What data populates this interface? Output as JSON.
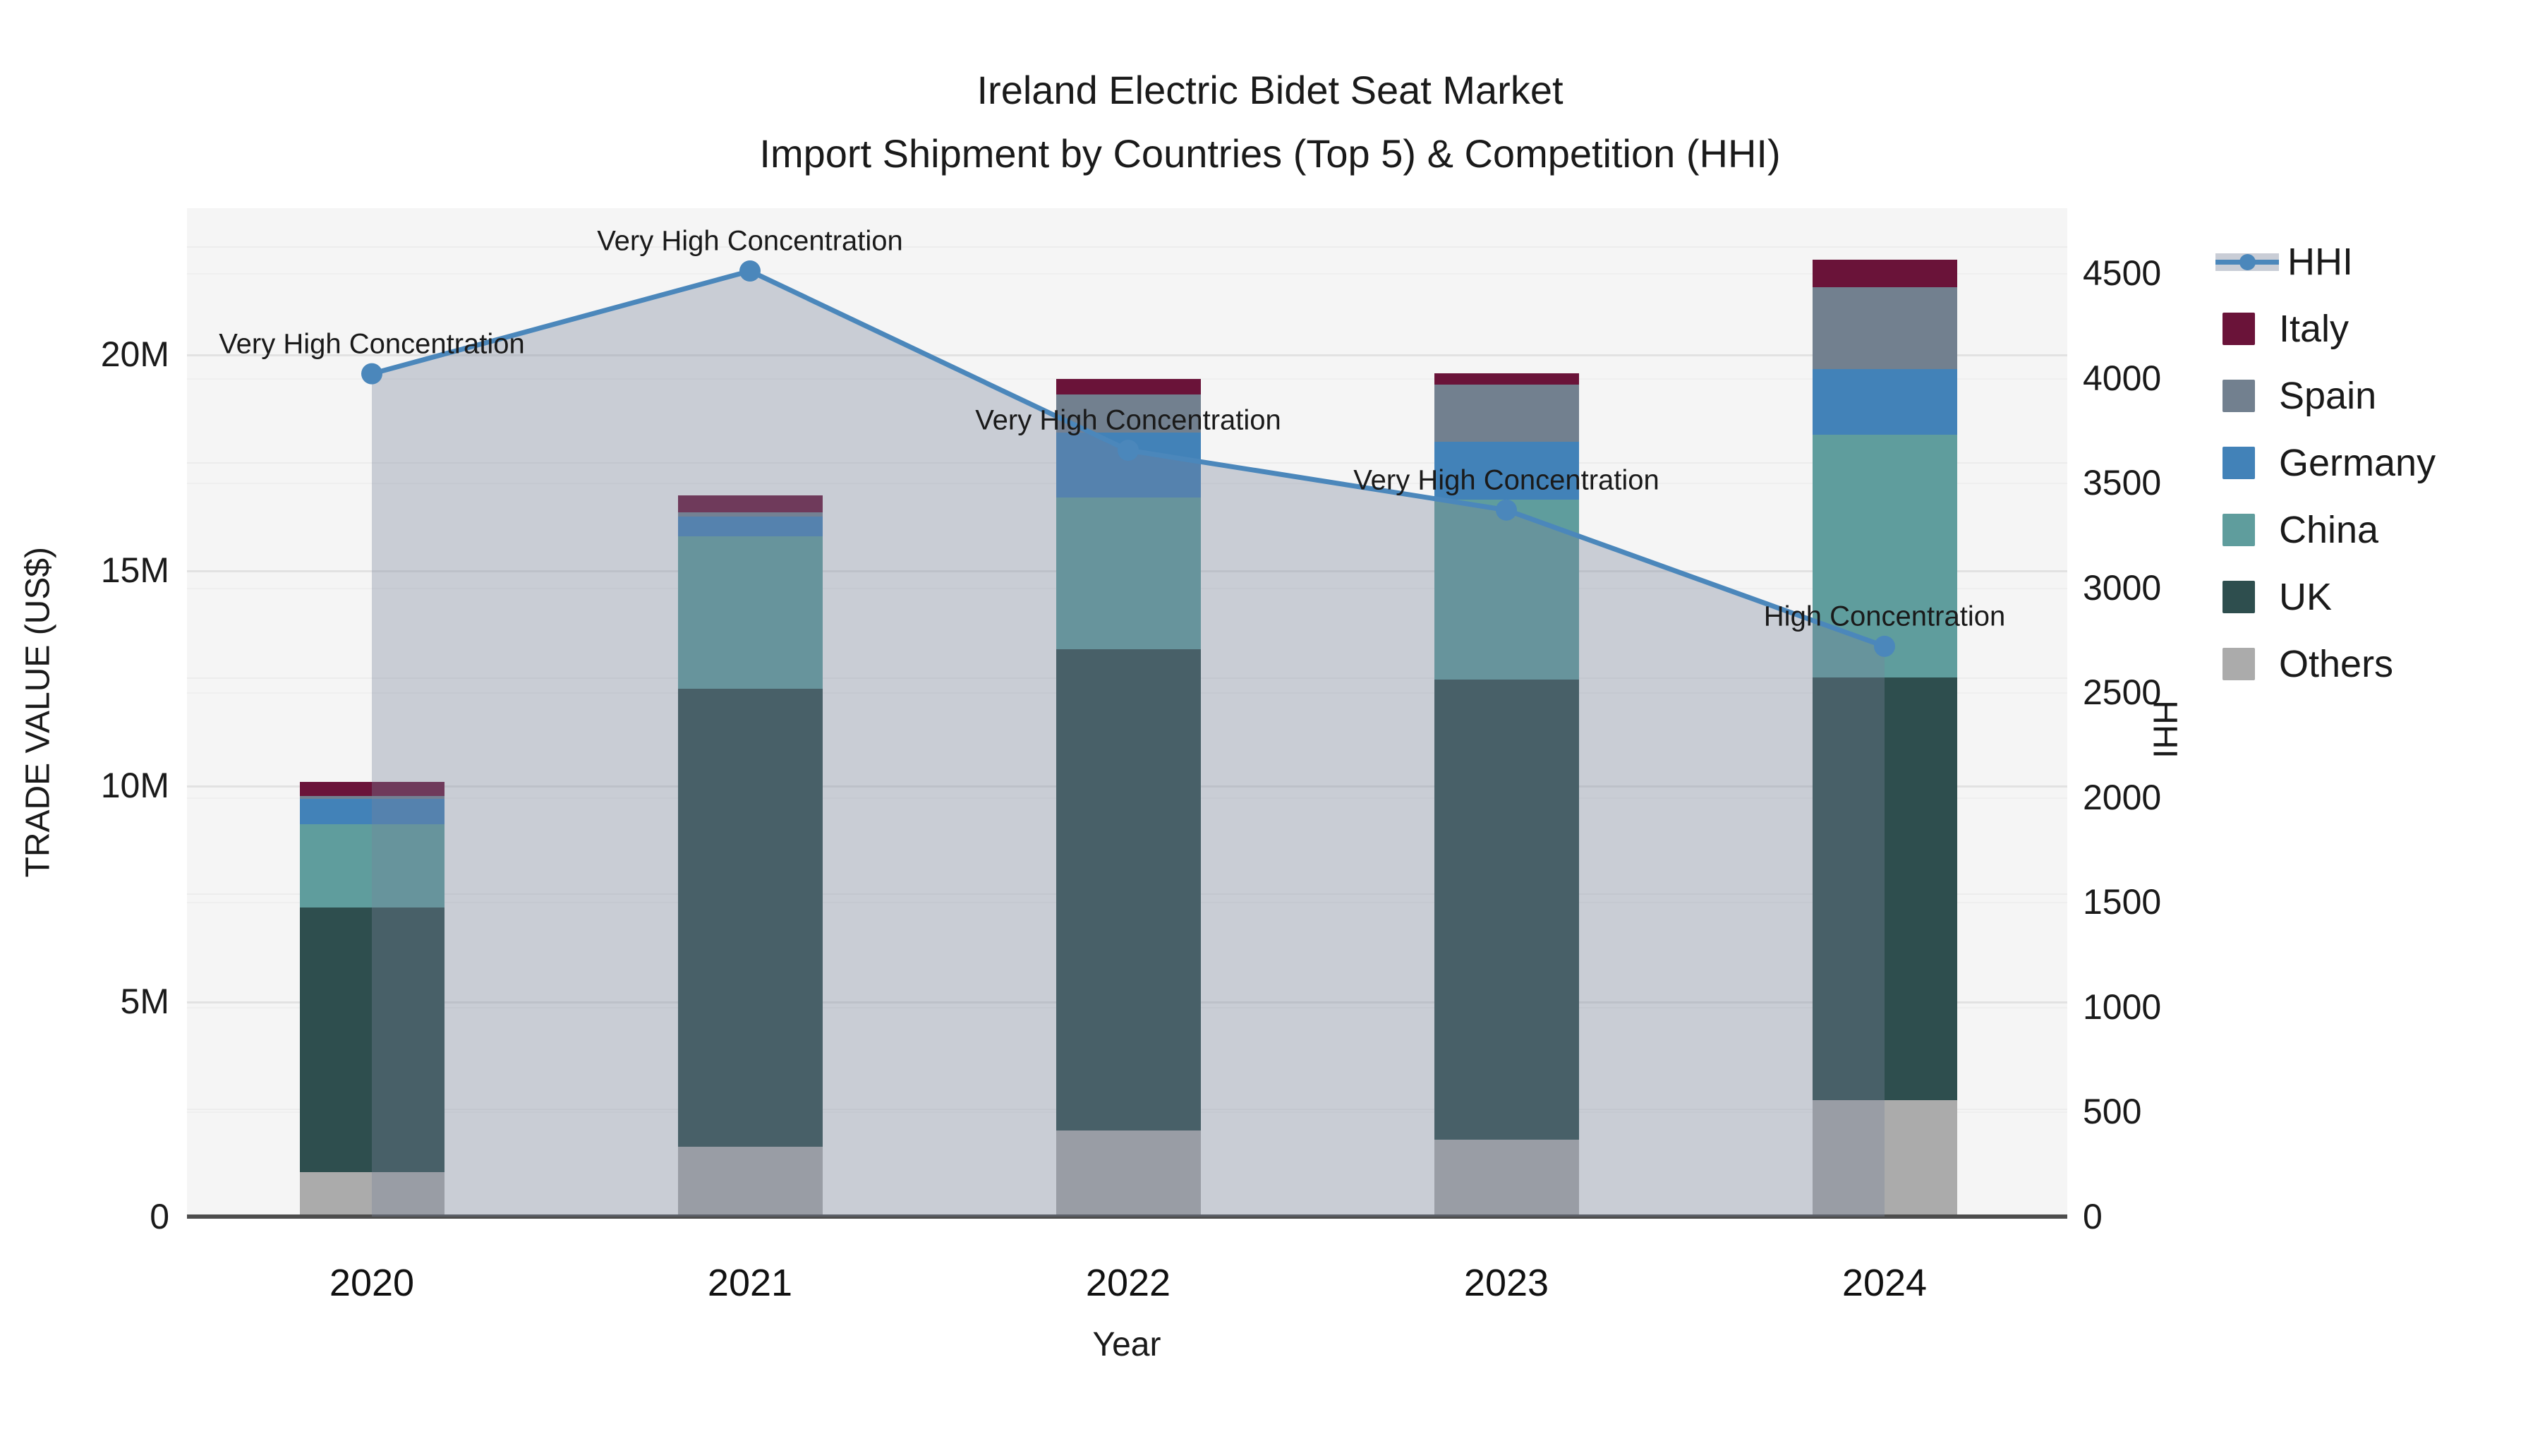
{
  "title": {
    "line1": "Ireland Electric Bidet Seat Market",
    "line2": "Import Shipment by Countries (Top 5) & Competition (HHI)"
  },
  "axes": {
    "y_left": {
      "title": "TRADE VALUE (US$)",
      "tick_labels": [
        "0",
        "5M",
        "10M",
        "15M",
        "20M"
      ],
      "tick_values": [
        0,
        5,
        10,
        15,
        20
      ],
      "max_value": 23.4
    },
    "y_right": {
      "title": "HHI",
      "tick_labels": [
        "0",
        "500",
        "1000",
        "1500",
        "2000",
        "2500",
        "3000",
        "3500",
        "4000",
        "4500"
      ],
      "tick_values": [
        0,
        500,
        1000,
        1500,
        2000,
        2500,
        3000,
        3500,
        4000,
        4500
      ],
      "max_value": 4810
    },
    "x": {
      "title": "Year",
      "tick_labels": [
        "2020",
        "2021",
        "2022",
        "2023",
        "2024"
      ]
    }
  },
  "chart_data": {
    "type": "bar",
    "subtype": "stacked-bars-with-line-overlay",
    "categories": [
      2020,
      2021,
      2022,
      2023,
      2024
    ],
    "value_unit": "Million US$",
    "series": [
      {
        "name": "Others",
        "color": "#ABABAB",
        "values": [
          1.03,
          1.62,
          2.0,
          1.78,
          2.7
        ]
      },
      {
        "name": "UK",
        "color": "#2E4E4E",
        "values": [
          6.14,
          10.62,
          11.16,
          10.67,
          9.8
        ]
      },
      {
        "name": "China",
        "color": "#5F9D9D",
        "values": [
          1.93,
          3.54,
          3.52,
          4.18,
          5.63
        ]
      },
      {
        "name": "Germany",
        "color": "#4282B8",
        "values": [
          0.59,
          0.46,
          1.51,
          1.34,
          1.52
        ]
      },
      {
        "name": "Spain",
        "color": "#72808F",
        "values": [
          0.07,
          0.1,
          0.88,
          1.33,
          1.9
        ]
      },
      {
        "name": "Italy",
        "color": "#6A1339",
        "values": [
          0.33,
          0.39,
          0.36,
          0.26,
          0.65
        ]
      }
    ],
    "bar_totals": [
      10.09,
      16.73,
      19.43,
      19.56,
      22.2
    ],
    "line_series": {
      "name": "HHI",
      "axis": "right",
      "color": "#4b87bb",
      "area_fill": "rgba(120,131,156,0.35)",
      "values": [
        4020,
        4510,
        3655,
        3370,
        2720
      ]
    },
    "annotations": [
      {
        "year": 2020,
        "text": "Very High Concentration"
      },
      {
        "year": 2021,
        "text": "Very High Concentration"
      },
      {
        "year": 2022,
        "text": "Very High Concentration"
      },
      {
        "year": 2023,
        "text": "Very High Concentration"
      },
      {
        "year": 2024,
        "text": "High Concentration"
      }
    ],
    "grid": "on",
    "legend_position": "right-outside"
  },
  "legend": {
    "items": [
      {
        "label": "HHI",
        "type": "line",
        "color": "#4b87bb"
      },
      {
        "label": "Italy",
        "type": "square",
        "color": "#6A1339"
      },
      {
        "label": "Spain",
        "type": "square",
        "color": "#72808F"
      },
      {
        "label": "Germany",
        "type": "square",
        "color": "#4282B8"
      },
      {
        "label": "China",
        "type": "square",
        "color": "#5F9D9D"
      },
      {
        "label": "UK",
        "type": "square",
        "color": "#2E4E4E"
      },
      {
        "label": "Others",
        "type": "square",
        "color": "#ABABAB"
      }
    ]
  },
  "colors": {
    "plot_background": "#f5f5f5",
    "page_background": "#ffffff",
    "axis_line": "#4d4d4d",
    "text": "#1a1a1a",
    "hhi_line": "#4b87bb",
    "area_fill": "rgba(120,131,156,0.35)"
  }
}
